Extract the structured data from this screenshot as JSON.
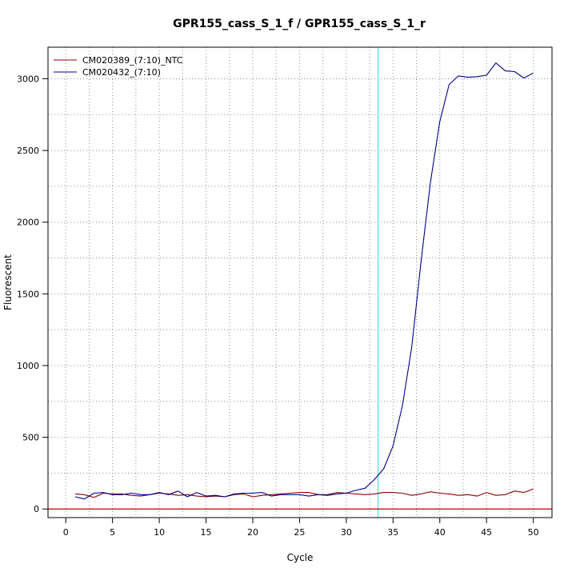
{
  "chart_data": {
    "type": "line",
    "title": "GPR155_cass_S_1_f / GPR155_cass_S_1_r",
    "xlabel": "Cycle",
    "ylabel": "Fluorescent",
    "xlim": [
      -1.9,
      52
    ],
    "ylim": [
      -60,
      3220
    ],
    "x_ticks": [
      0,
      5,
      10,
      15,
      20,
      25,
      30,
      35,
      40,
      45,
      50
    ],
    "y_ticks": [
      0,
      500,
      1000,
      1500,
      2000,
      2500,
      3000
    ],
    "grid": true,
    "legend_position": "top-left",
    "threshold_x": 33.4,
    "baseline_y": 0,
    "threshold_color": "#33d6d6",
    "baseline_color": "#cc0000",
    "x": [
      1,
      2,
      3,
      4,
      5,
      6,
      7,
      8,
      9,
      10,
      11,
      12,
      13,
      14,
      15,
      16,
      17,
      18,
      19,
      20,
      21,
      22,
      23,
      24,
      25,
      26,
      27,
      28,
      29,
      30,
      31,
      32,
      33,
      34,
      35,
      36,
      37,
      38,
      39,
      40,
      41,
      42,
      43,
      44,
      45,
      46,
      47,
      48,
      49,
      50
    ],
    "series": [
      {
        "name": "CM020389_(7:10)_NTC",
        "color": "#8b0000",
        "values": [
          105,
          100,
          80,
          110,
          105,
          105,
          95,
          90,
          100,
          110,
          105,
          95,
          100,
          90,
          85,
          90,
          85,
          100,
          105,
          85,
          95,
          100,
          105,
          110,
          115,
          115,
          100,
          100,
          115,
          110,
          105,
          100,
          105,
          115,
          115,
          110,
          95,
          105,
          120,
          110,
          105,
          95,
          100,
          90,
          115,
          95,
          100,
          125,
          115,
          140
        ]
      },
      {
        "name": "CM020432_(7:10)",
        "color": "#00008b",
        "values": [
          85,
          70,
          110,
          115,
          100,
          100,
          110,
          100,
          100,
          115,
          100,
          125,
          85,
          115,
          90,
          95,
          85,
          105,
          110,
          110,
          115,
          90,
          100,
          100,
          100,
          90,
          100,
          95,
          105,
          110,
          130,
          145,
          205,
          280,
          440,
          720,
          1130,
          1730,
          2280,
          2700,
          2960,
          3020,
          3010,
          3015,
          3025,
          3110,
          3055,
          3050,
          3005,
          3040
        ]
      }
    ]
  }
}
